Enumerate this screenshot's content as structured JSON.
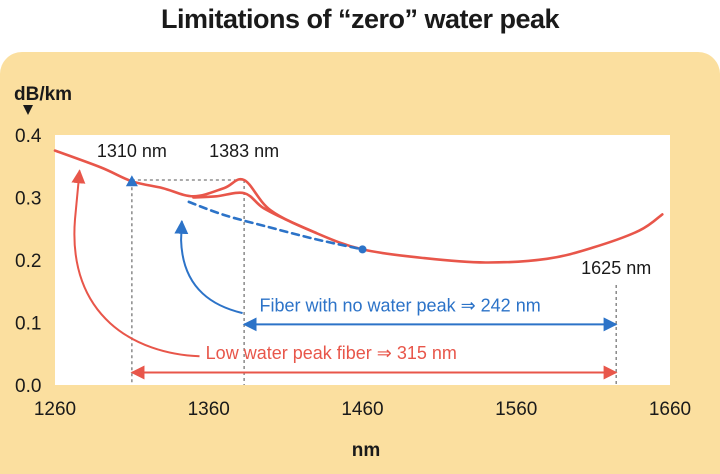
{
  "chart_data": {
    "type": "line",
    "title": "Limitations of “zero” water peak",
    "xlabel": "nm",
    "ylabel": "dB/km",
    "xlim": [
      1260,
      1660
    ],
    "ylim": [
      0.0,
      0.4
    ],
    "xticks": [
      "1260",
      "1360",
      "1460",
      "1560",
      "1660"
    ],
    "yticks": [
      "0.0",
      "0.1",
      "0.2",
      "0.3",
      "0.4"
    ],
    "series": [
      {
        "style": "solid",
        "color": "#e8564a",
        "x": [
          1260,
          1290,
          1310,
          1330,
          1350,
          1370,
          1383,
          1400,
          1430,
          1460,
          1500,
          1540,
          1580,
          1610,
          1640,
          1655
        ],
        "y": [
          0.375,
          0.348,
          0.326,
          0.315,
          0.302,
          0.315,
          0.328,
          0.28,
          0.243,
          0.217,
          0.203,
          0.196,
          0.202,
          0.22,
          0.247,
          0.273
        ]
      },
      {
        "style": "solid",
        "color": "#e8564a",
        "x": [
          1350,
          1365,
          1383,
          1395,
          1410,
          1430
        ],
        "y": [
          0.3,
          0.302,
          0.307,
          0.284,
          0.265,
          0.243
        ]
      },
      {
        "style": "dashed",
        "color": "#2c73c8",
        "x": [
          1347,
          1370,
          1400,
          1430,
          1460
        ],
        "y": [
          0.293,
          0.272,
          0.252,
          0.233,
          0.217
        ]
      }
    ],
    "markers": [
      {
        "x": 1310,
        "y": 0.326,
        "shape": "triangle",
        "color": "#2c73c8"
      },
      {
        "x": 1460,
        "y": 0.217,
        "shape": "circle",
        "color": "#2c73c8"
      }
    ],
    "reference_lines": [
      {
        "x": 1310,
        "y": 0.326
      },
      {
        "x": 1383,
        "y": 0.328
      },
      {
        "x": 1625,
        "y": 0.16
      }
    ],
    "annotations": [
      {
        "text": "1310 nm",
        "x": 1310,
        "y": 0.365
      },
      {
        "text": "1383 nm",
        "x": 1383,
        "y": 0.365
      },
      {
        "text": "1625 nm",
        "x": 1625,
        "y": 0.178
      },
      {
        "text": "Fiber with no water peak ⇒ 242 nm",
        "color": "#2c73c8",
        "range": [
          1383,
          1625
        ],
        "y": 0.097
      },
      {
        "text": "Low water peak fiber ⇒ 315 nm",
        "color": "#e8564a",
        "range": [
          1310,
          1625
        ],
        "y": 0.02
      }
    ],
    "grid": false,
    "background": "#fbdf9f",
    "plot_background": "#ffffff"
  }
}
